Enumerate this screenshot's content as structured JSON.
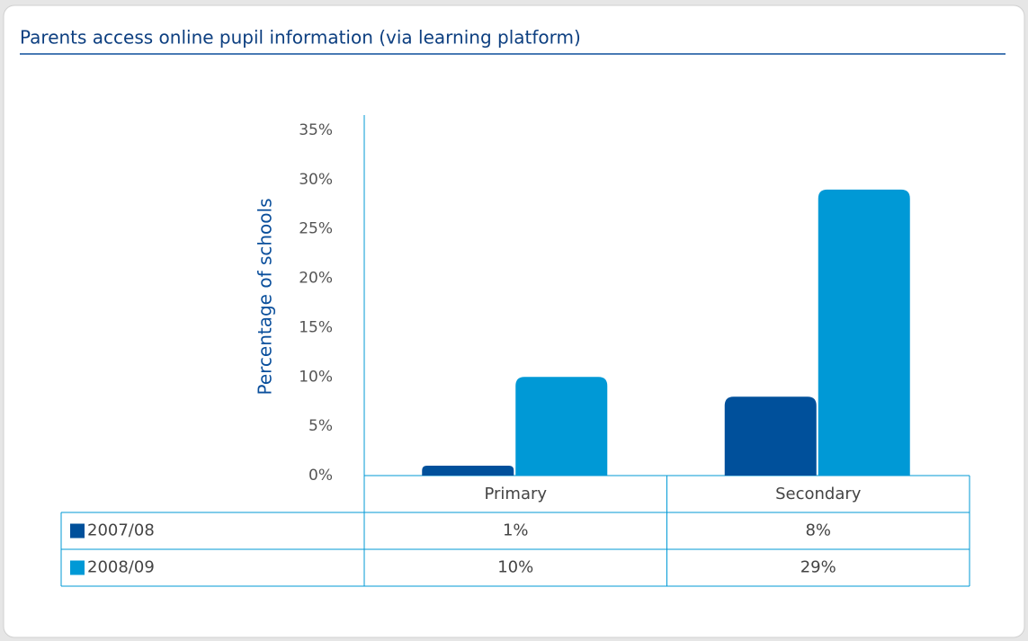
{
  "chart_data": {
    "type": "bar",
    "title": "Parents access online pupil information (via learning platform)",
    "y_label": "Percentage of schools",
    "categories": [
      "Primary",
      "Secondary"
    ],
    "series": [
      {
        "name": "2007/08",
        "color": "#00509b",
        "values": [
          1,
          8
        ],
        "value_labels": [
          "1%",
          "8%"
        ]
      },
      {
        "name": "2008/09",
        "color": "#0099d6",
        "values": [
          10,
          29
        ],
        "value_labels": [
          "10%",
          "29%"
        ]
      }
    ],
    "ylim": [
      0,
      35
    ],
    "yticks": [
      {
        "value": 0,
        "label": "0%"
      },
      {
        "value": 5,
        "label": "5%"
      },
      {
        "value": 10,
        "label": "10%"
      },
      {
        "value": 15,
        "label": "15%"
      },
      {
        "value": 20,
        "label": "20%"
      },
      {
        "value": 25,
        "label": "25%"
      },
      {
        "value": 30,
        "label": "30%"
      },
      {
        "value": 35,
        "label": "35%"
      }
    ]
  }
}
